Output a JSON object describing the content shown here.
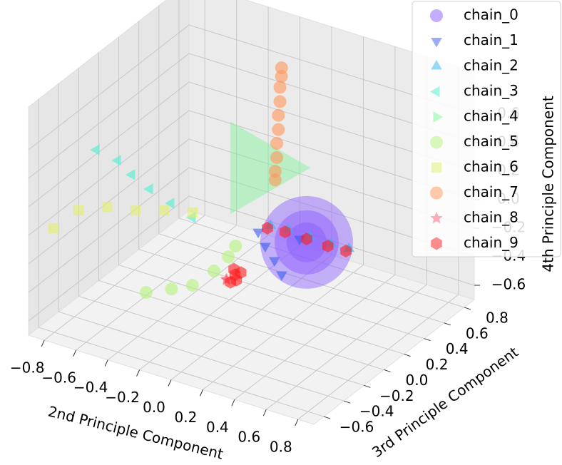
{
  "chart_data": {
    "type": "scatter3d",
    "xlabel": "2nd Principle Component",
    "ylabel": "3rd Principle Component",
    "zlabel": "4th Principle Component",
    "xlim": [
      -0.9,
      0.9
    ],
    "ylim": [
      -0.7,
      0.9
    ],
    "zlim": [
      -0.7,
      0.9
    ],
    "xticks": [
      {
        "value": -0.8,
        "label": "−0.8"
      },
      {
        "value": -0.6,
        "label": "−0.6"
      },
      {
        "value": -0.4,
        "label": "−0.4"
      },
      {
        "value": -0.2,
        "label": "−0.2"
      },
      {
        "value": 0,
        "label": "0.0"
      },
      0.2,
      0.4,
      0.6,
      0.8
    ],
    "yticks": [
      {
        "value": -0.6,
        "label": "−0.6"
      },
      {
        "value": -0.4,
        "label": "−0.4"
      },
      {
        "value": -0.2,
        "label": "−0.2"
      },
      {
        "value": 0,
        "label": "0.0"
      },
      0.2,
      0.4,
      0.6,
      0.8
    ],
    "zticks": [
      {
        "value": -0.6,
        "label": "−0.6"
      },
      {
        "value": -0.4,
        "label": "−0.4"
      },
      {
        "value": -0.2,
        "label": "−0.2"
      },
      {
        "value": 0,
        "label": "0.0"
      },
      0.2,
      0.4,
      0.6
    ],
    "grid": true,
    "legend": "upper right",
    "series": [
      {
        "name": "chain_0",
        "color": "#8a5cff",
        "marker": "o",
        "x": [
          0.475,
          0.475,
          0.475
        ],
        "y": [
          -0.1,
          -0.1,
          -0.1
        ],
        "z": [
          0.1,
          0.1,
          0.1
        ],
        "sizes": [
          130,
          90,
          56
        ]
      },
      {
        "name": "chain_1",
        "color": "#3a5cf0",
        "marker": "v",
        "x": [
          0.196,
          0.31,
          0.434,
          0.549,
          0.423
        ],
        "y": [
          -0.142,
          -0.252,
          -0.356,
          -0.466,
          -0.089
        ],
        "z": [
          0.1,
          0.1,
          0.1,
          0.1,
          0.1
        ]
      },
      {
        "name": "chain_2",
        "color": "#2fb4f0",
        "marker": "^",
        "x": [
          0.216,
          0.317,
          0.455,
          0.592,
          0.702
        ],
        "y": [
          -0.05,
          -0.035,
          -0.038,
          -0.043,
          -0.037
        ],
        "z": [
          0.1,
          0.1,
          0.1,
          0.1,
          0.1
        ]
      },
      {
        "name": "chain_3",
        "color": "#4af0d0",
        "marker": "<",
        "x": [
          -0.743,
          -0.585,
          -0.439,
          -0.275,
          -0.097,
          0.081
        ],
        "y": [
          -0.272,
          -0.308,
          -0.398,
          -0.478,
          -0.547,
          -0.616
        ],
        "z": [
          0.42,
          0.42,
          0.42,
          0.42,
          0.42,
          0.42
        ]
      },
      {
        "name": "chain_4",
        "color": "#7ff598",
        "marker": ">",
        "x": [
          -0.18
        ],
        "y": [
          0.44
        ],
        "z": [
          0.1
        ],
        "sizes": [
          150
        ]
      },
      {
        "name": "chain_5",
        "color": "#b4f27a",
        "marker": "o",
        "x": [
          -0.354,
          -0.26,
          -0.187,
          -0.173,
          -0.19,
          -0.22
        ],
        "y": [
          -0.39,
          -0.286,
          -0.193,
          0.0,
          0.17,
          0.29
        ],
        "z": [
          -0.38,
          -0.38,
          -0.38,
          -0.38,
          -0.38,
          -0.38
        ]
      },
      {
        "name": "chain_6",
        "color": "#e2f06a",
        "marker": "s",
        "x": [
          -0.878,
          -0.87,
          -0.76,
          -0.612,
          -0.484,
          -0.344
        ],
        "y": [
          -0.485,
          -0.25,
          -0.137,
          -0.088,
          -0.006,
          0.056
        ],
        "z": [
          -0.06,
          -0.06,
          -0.06,
          -0.06,
          -0.06,
          -0.06
        ]
      },
      {
        "name": "chain_7",
        "color": "#ff9658",
        "marker": "o",
        "x": [
          -0.12,
          -0.12,
          -0.13,
          -0.13,
          -0.14,
          -0.14,
          -0.15,
          -0.15,
          -0.16,
          -0.16
        ],
        "y": [
          0.59,
          0.59,
          0.59,
          0.59,
          0.59,
          0.59,
          0.59,
          0.59,
          0.59,
          0.59
        ],
        "z": [
          0.74,
          0.68,
          0.6,
          0.5,
          0.4,
          0.3,
          0.2,
          0.1,
          0.0,
          -0.06
        ]
      },
      {
        "name": "chain_8",
        "color": "#ff5a6e",
        "marker": "*",
        "x": [
          0.3,
          0.31
        ],
        "y": [
          -0.62,
          -0.64
        ],
        "z": [
          0.06,
          0.08
        ]
      },
      {
        "name": "chain_9",
        "color": "#ff1a1a",
        "marker": "h",
        "x": [
          0.32,
          0.34,
          0.36,
          0.33,
          0.37,
          0.216,
          0.317,
          0.455,
          0.592,
          0.702
        ],
        "y": [
          -0.58,
          -0.6,
          -0.62,
          -0.63,
          -0.59,
          -0.082,
          -0.065,
          -0.068,
          -0.073,
          -0.067
        ],
        "z": [
          0.12,
          0.1,
          0.08,
          0.06,
          0.12,
          0.1,
          0.1,
          0.1,
          0.1,
          0.1
        ]
      }
    ]
  }
}
